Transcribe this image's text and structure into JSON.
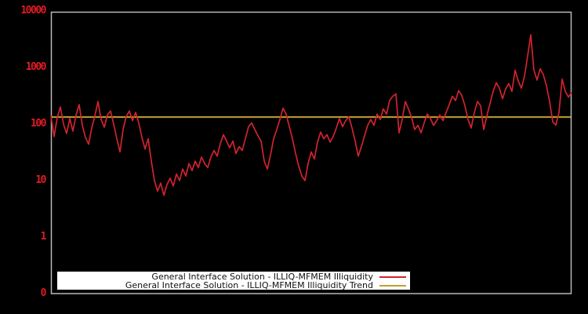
{
  "figure": {
    "colors": {
      "background": "#000000",
      "plot_border": "#b8b8b8",
      "tick_text": "#e01b24",
      "legend_bg": "#ffffff",
      "legend_text": "#111111"
    }
  },
  "chart_data": {
    "type": "line",
    "title": "",
    "xlabel": "",
    "ylabel": "",
    "yscale": "log",
    "ylim": [
      0.1,
      10000
    ],
    "grid": false,
    "x_tick_labels_visible": false,
    "y_tick_labels": [
      "10000",
      "1000",
      "100",
      "10",
      "1",
      "0"
    ],
    "legend_position": "bottom-center",
    "series": [
      {
        "name": "General Interface Solution - ILLIQ-MFMEM Illiquidity",
        "color": "#d2232e",
        "style": "jagged-line",
        "values": [
          140,
          60,
          130,
          200,
          100,
          68,
          125,
          75,
          145,
          220,
          95,
          58,
          44,
          85,
          140,
          250,
          120,
          88,
          145,
          170,
          100,
          55,
          32,
          80,
          135,
          170,
          115,
          160,
          105,
          58,
          36,
          55,
          22,
          10,
          6.5,
          9,
          5.5,
          8.5,
          11,
          8,
          13,
          10,
          16,
          12,
          20,
          15,
          22,
          17,
          26,
          20,
          17,
          26,
          34,
          27,
          45,
          65,
          50,
          38,
          50,
          30,
          40,
          34,
          55,
          90,
          105,
          80,
          62,
          50,
          22,
          16,
          28,
          55,
          80,
          120,
          190,
          150,
          90,
          55,
          30,
          18,
          12,
          10,
          20,
          32,
          24,
          48,
          72,
          55,
          65,
          48,
          60,
          85,
          125,
          90,
          115,
          135,
          85,
          50,
          27,
          40,
          62,
          95,
          120,
          95,
          150,
          120,
          185,
          150,
          260,
          310,
          340,
          70,
          120,
          250,
          185,
          130,
          80,
          95,
          70,
          105,
          150,
          125,
          95,
          115,
          145,
          115,
          160,
          220,
          310,
          260,
          390,
          320,
          210,
          120,
          85,
          160,
          250,
          210,
          80,
          140,
          230,
          380,
          540,
          430,
          280,
          420,
          520,
          380,
          900,
          580,
          430,
          700,
          1600,
          3800,
          900,
          600,
          950,
          750,
          480,
          250,
          110,
          95,
          160,
          620,
          380,
          300,
          360
        ]
      },
      {
        "name": "General Interface Solution - ILLIQ-MFMEM Illiquidity Trend",
        "color": "#c3a02c",
        "style": "constant-line",
        "value": 133
      }
    ]
  }
}
